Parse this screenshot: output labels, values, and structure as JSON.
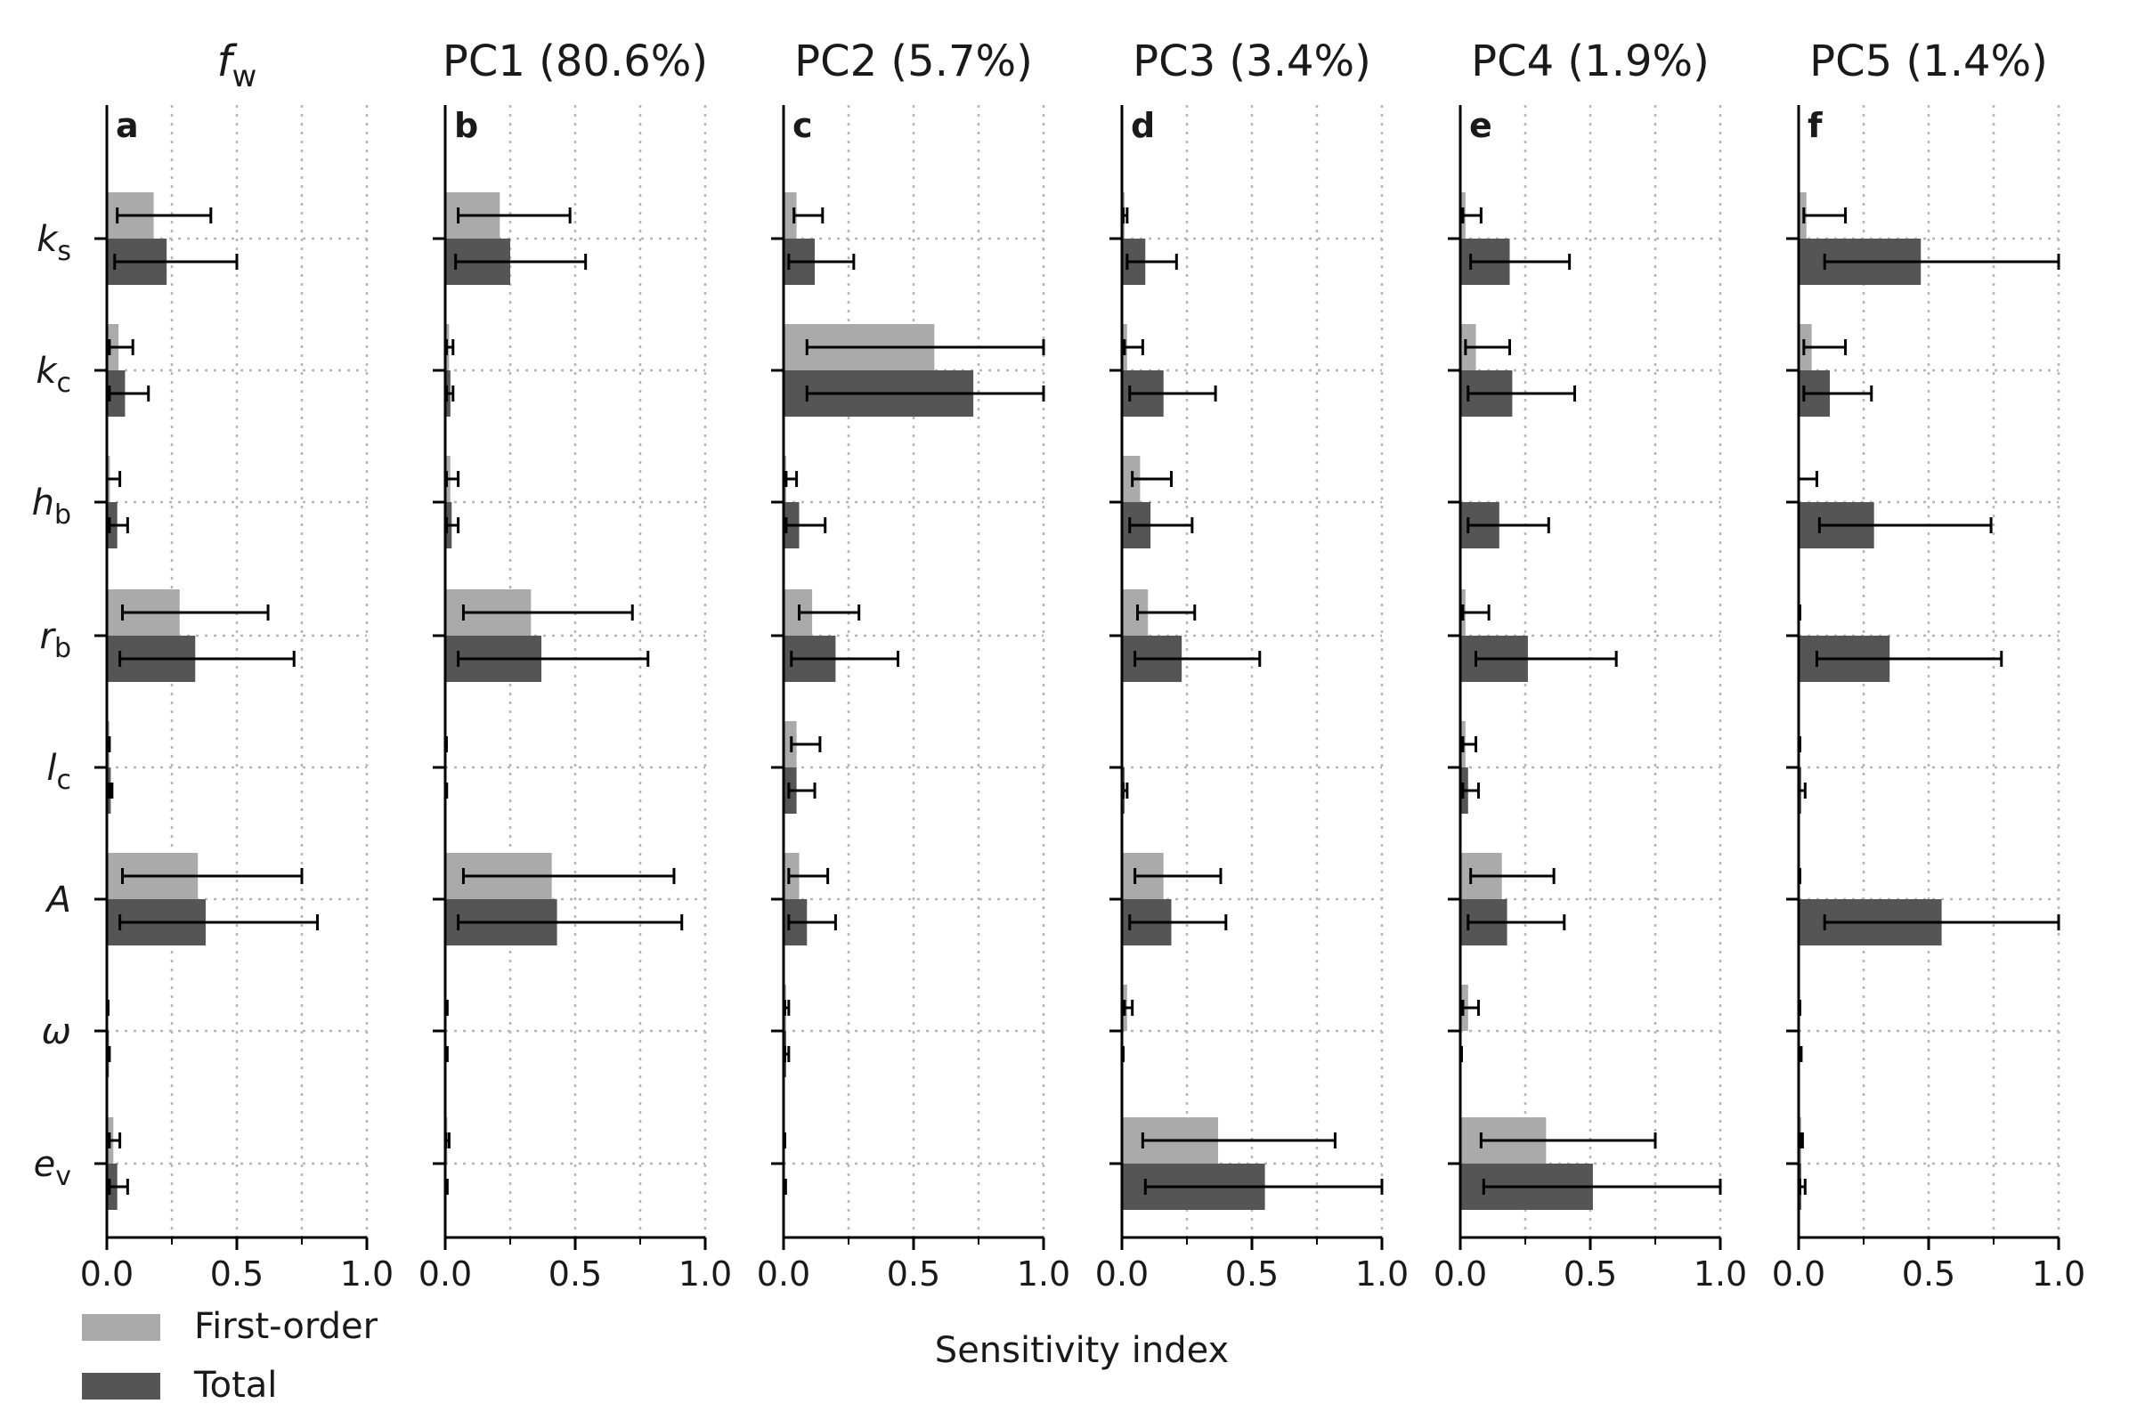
{
  "chart_data": {
    "type": "bar",
    "orientation": "horizontal",
    "xlabel": "Sensitivity index",
    "xlim": [
      0,
      1
    ],
    "xticks": [
      "0.0",
      "0.5",
      "1.0"
    ],
    "grid": true,
    "legend_placement": "bottom-left",
    "colors": {
      "First-order": "#aaaaaa",
      "Total": "#555555",
      "errorbar": "#000000",
      "grid": "#b5b5b5"
    },
    "parameters": [
      {
        "sym": "k",
        "sub": "s"
      },
      {
        "sym": "k",
        "sub": "c"
      },
      {
        "sym": "h",
        "sub": "b"
      },
      {
        "sym": "r",
        "sub": "b"
      },
      {
        "sym": "l",
        "sub": "c"
      },
      {
        "sym": "A",
        "sub": ""
      },
      {
        "sym": "ω",
        "sub": ""
      },
      {
        "sym": "e",
        "sub": "v"
      }
    ],
    "legend": [
      {
        "name": "First-order",
        "color": "#aaaaaa"
      },
      {
        "name": "Total",
        "color": "#555555"
      }
    ],
    "panels": [
      {
        "letter": "a",
        "title_main": "f",
        "title_sub": "w",
        "title_italic": true,
        "series": [
          {
            "name": "First-order",
            "values": [
              0.18,
              0.045,
              0.012,
              0.28,
              0.01,
              0.35,
              0.005,
              0.025
            ],
            "err_low": [
              0.04,
              0.01,
              0.0,
              0.06,
              0.0,
              0.06,
              0.0,
              0.01
            ],
            "err_high": [
              0.4,
              0.1,
              0.05,
              0.62,
              0.01,
              0.75,
              0.005,
              0.05
            ]
          },
          {
            "name": "Total",
            "values": [
              0.23,
              0.07,
              0.04,
              0.34,
              0.015,
              0.38,
              0.008,
              0.04
            ],
            "err_low": [
              0.03,
              0.01,
              0.01,
              0.05,
              0.01,
              0.05,
              0.005,
              0.01
            ],
            "err_high": [
              0.5,
              0.16,
              0.08,
              0.72,
              0.02,
              0.81,
              0.01,
              0.08
            ]
          }
        ]
      },
      {
        "letter": "b",
        "title_main": "PC1 (80.6%)",
        "title_sub": "",
        "title_italic": false,
        "series": [
          {
            "name": "First-order",
            "values": [
              0.21,
              0.015,
              0.02,
              0.33,
              0.003,
              0.41,
              0.005,
              0.008
            ],
            "err_low": [
              0.05,
              0.005,
              0.005,
              0.07,
              0.0,
              0.07,
              0.0,
              0.003
            ],
            "err_high": [
              0.48,
              0.03,
              0.05,
              0.72,
              0.005,
              0.88,
              0.008,
              0.015
            ]
          },
          {
            "name": "Total",
            "values": [
              0.25,
              0.02,
              0.025,
              0.37,
              0.004,
              0.43,
              0.005,
              0.005
            ],
            "err_low": [
              0.04,
              0.005,
              0.005,
              0.05,
              0.0,
              0.05,
              0.0,
              0.0
            ],
            "err_high": [
              0.54,
              0.03,
              0.05,
              0.78,
              0.006,
              0.91,
              0.008,
              0.008
            ]
          }
        ]
      },
      {
        "letter": "c",
        "title_main": "PC2 (5.7%)",
        "title_sub": "",
        "title_italic": false,
        "series": [
          {
            "name": "First-order",
            "values": [
              0.05,
              0.58,
              0.01,
              0.11,
              0.05,
              0.06,
              0.01,
              0.005
            ],
            "err_low": [
              0.04,
              0.09,
              0.01,
              0.06,
              0.03,
              0.02,
              0.005,
              0.0
            ],
            "err_high": [
              0.15,
              1.0,
              0.05,
              0.29,
              0.14,
              0.17,
              0.02,
              0.005
            ]
          },
          {
            "name": "Total",
            "values": [
              0.12,
              0.73,
              0.06,
              0.2,
              0.05,
              0.09,
              0.01,
              0.005
            ],
            "err_low": [
              0.02,
              0.09,
              0.01,
              0.03,
              0.02,
              0.02,
              0.005,
              0.0
            ],
            "err_high": [
              0.27,
              1.0,
              0.16,
              0.44,
              0.12,
              0.2,
              0.02,
              0.008
            ]
          }
        ]
      },
      {
        "letter": "d",
        "title_main": "PC3 (3.4%)",
        "title_sub": "",
        "title_italic": false,
        "series": [
          {
            "name": "First-order",
            "values": [
              0.01,
              0.02,
              0.07,
              0.1,
              0.0,
              0.16,
              0.02,
              0.37
            ],
            "err_low": [
              0.005,
              0.01,
              0.04,
              0.06,
              0.0,
              0.05,
              0.01,
              0.08
            ],
            "err_high": [
              0.02,
              0.08,
              0.19,
              0.28,
              0.0,
              0.38,
              0.04,
              0.82
            ]
          },
          {
            "name": "Total",
            "values": [
              0.09,
              0.16,
              0.11,
              0.23,
              0.01,
              0.19,
              0.005,
              0.55
            ],
            "err_low": [
              0.02,
              0.03,
              0.03,
              0.05,
              0.005,
              0.03,
              0.0,
              0.09
            ],
            "err_high": [
              0.21,
              0.36,
              0.27,
              0.53,
              0.02,
              0.4,
              0.005,
              1.0
            ]
          }
        ]
      },
      {
        "letter": "e",
        "title_main": "PC4 (1.9%)",
        "title_sub": "",
        "title_italic": false,
        "series": [
          {
            "name": "First-order",
            "values": [
              0.02,
              0.06,
              0.0,
              0.02,
              0.02,
              0.16,
              0.03,
              0.33
            ],
            "err_low": [
              0.01,
              0.02,
              0.0,
              0.01,
              0.01,
              0.04,
              0.01,
              0.08
            ],
            "err_high": [
              0.08,
              0.19,
              0.0,
              0.11,
              0.06,
              0.36,
              0.07,
              0.75
            ]
          },
          {
            "name": "Total",
            "values": [
              0.19,
              0.2,
              0.15,
              0.26,
              0.03,
              0.18,
              0.005,
              0.51
            ],
            "err_low": [
              0.04,
              0.03,
              0.03,
              0.06,
              0.01,
              0.03,
              0.0,
              0.09
            ],
            "err_high": [
              0.42,
              0.44,
              0.34,
              0.6,
              0.07,
              0.4,
              0.005,
              1.0
            ]
          }
        ]
      },
      {
        "letter": "f",
        "title_main": "PC5 (1.4%)",
        "title_sub": "",
        "title_italic": false,
        "series": [
          {
            "name": "First-order",
            "values": [
              0.03,
              0.05,
              0.005,
              0.005,
              0.005,
              0.005,
              0.005,
              0.01
            ],
            "err_low": [
              0.02,
              0.02,
              0.0,
              0.0,
              0.0,
              0.0,
              0.0,
              0.005
            ],
            "err_high": [
              0.18,
              0.18,
              0.07,
              0.005,
              0.005,
              0.005,
              0.005,
              0.015
            ]
          },
          {
            "name": "Total",
            "values": [
              0.47,
              0.12,
              0.29,
              0.35,
              0.01,
              0.55,
              0.005,
              0.01
            ],
            "err_low": [
              0.1,
              0.02,
              0.08,
              0.07,
              0.0,
              0.1,
              0.0,
              0.005
            ],
            "err_high": [
              1.0,
              0.28,
              0.74,
              0.78,
              0.025,
              1.0,
              0.01,
              0.025
            ]
          }
        ]
      }
    ]
  }
}
